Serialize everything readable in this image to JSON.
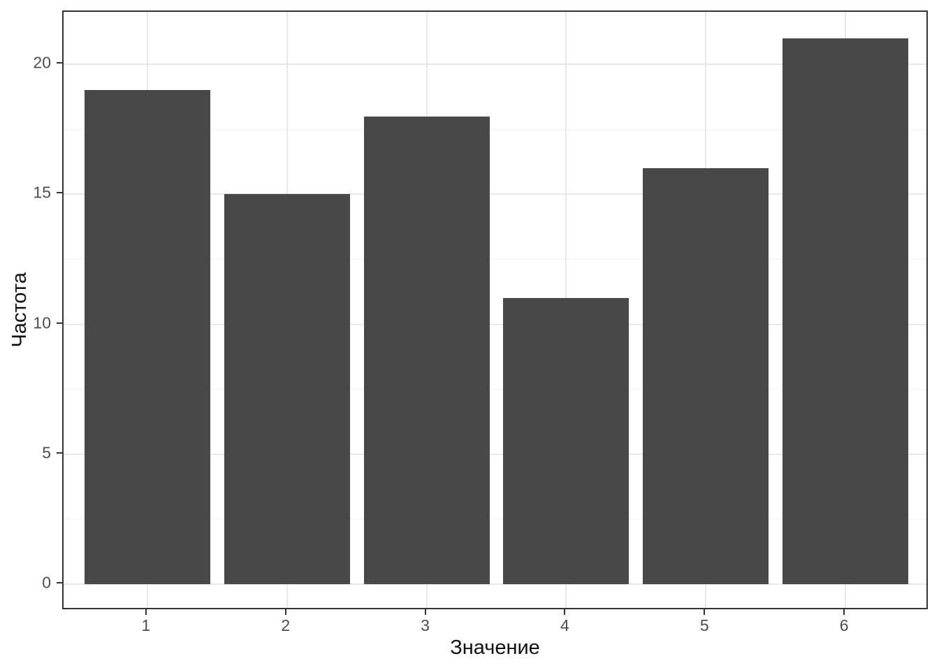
{
  "chart_data": {
    "type": "bar",
    "title": "",
    "xlabel": "Значение",
    "ylabel": "Частота",
    "categories": [
      "1",
      "2",
      "3",
      "4",
      "5",
      "6"
    ],
    "values": [
      19,
      15,
      18,
      11,
      16,
      21
    ],
    "series": [
      {
        "name": "Частота",
        "values": [
          19,
          15,
          18,
          11,
          16,
          21
        ]
      }
    ],
    "ylim": [
      -1.05,
      22.05
    ],
    "xlim": [
      0.4,
      6.6
    ],
    "yticks_major": [
      0,
      5,
      10,
      15,
      20
    ],
    "yticks_minor": [
      2.5,
      7.5,
      12.5,
      17.5
    ],
    "bar_width_units": 0.9,
    "grid": "on",
    "legend": "none",
    "style": "ggplot2-theme-bw",
    "colors": {
      "bar_fill": "#484848",
      "panel_border": "#333333",
      "grid_major": "#e8e8e8",
      "grid_minor": "#f1f1f1",
      "tick_mark": "#333333",
      "tick_label": "#4d4d4d",
      "axis_title": "#111111",
      "background": "#ffffff"
    }
  }
}
